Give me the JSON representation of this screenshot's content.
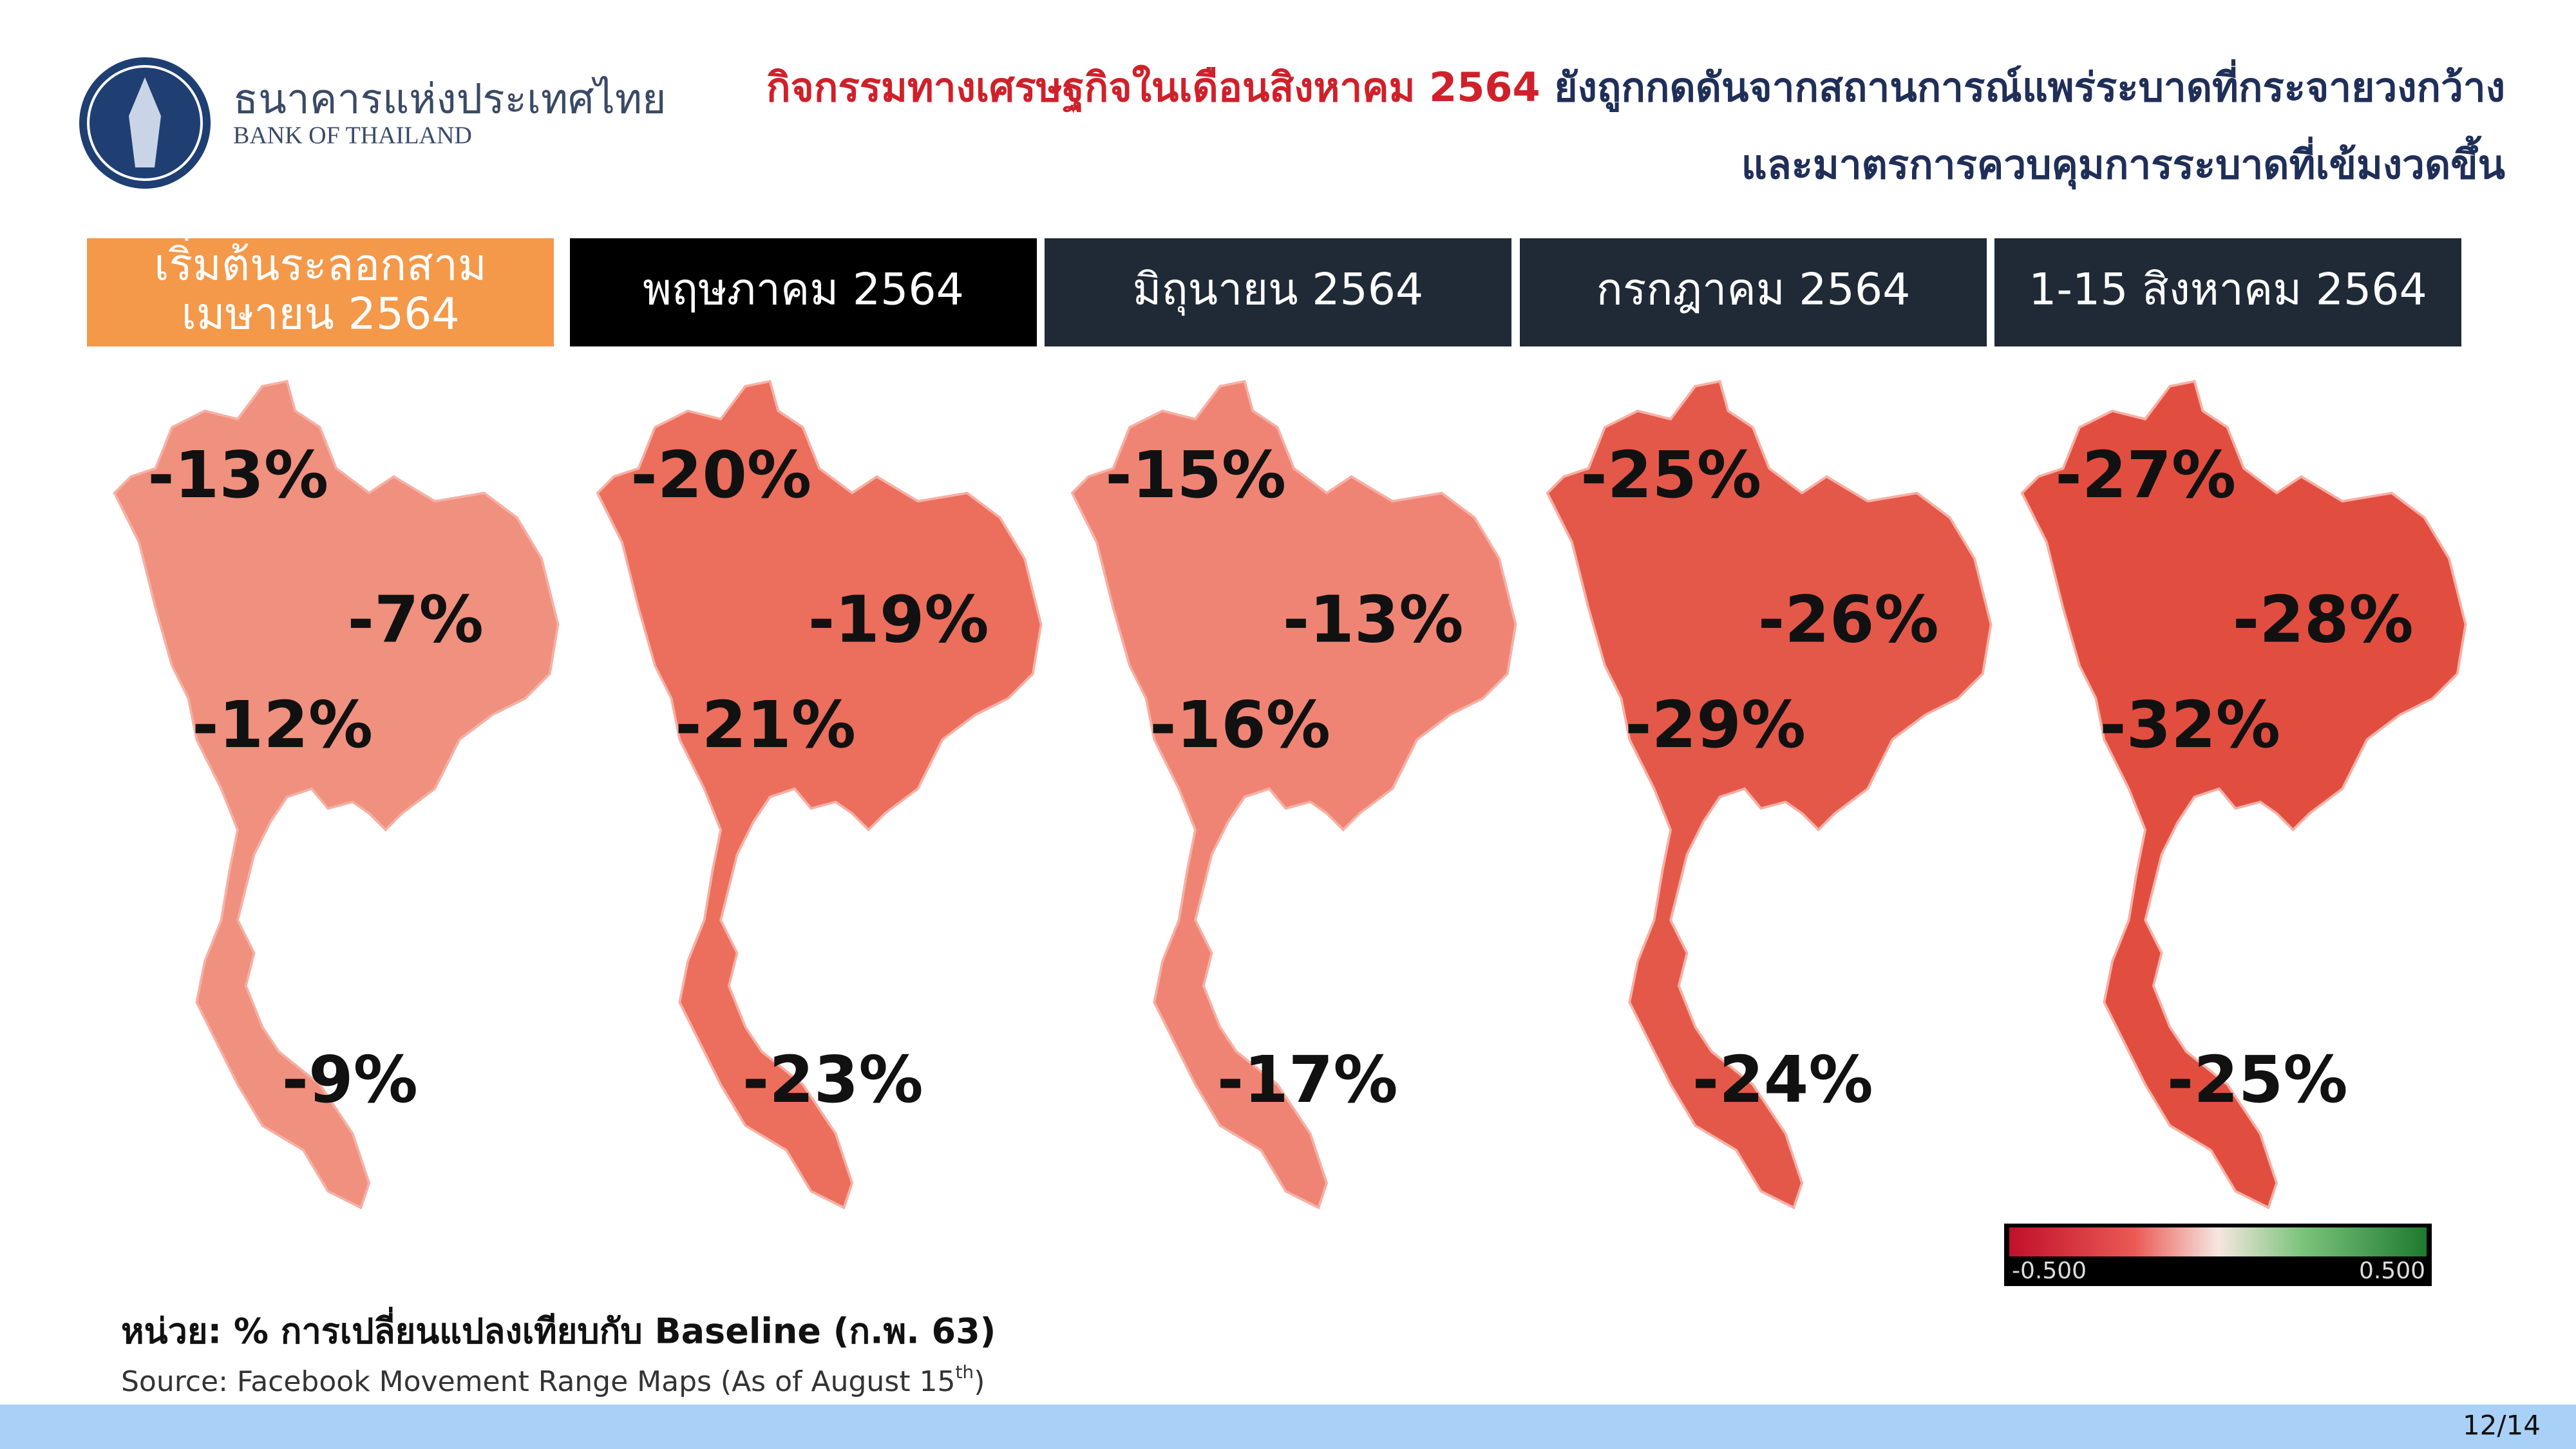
{
  "header": {
    "logo": {
      "name_th": "ธนาคารแห่งประเทศไทย",
      "name_en": "BANK OF THAILAND"
    },
    "title": {
      "highlight": "กิจกรรมทางเศรษฐกิจในเดือนสิงหาคม 2564",
      "rest": " ยังถูกกดดันจากสถานการณ์แพร่ระบาดที่กระจายวงกว้าง",
      "line2": "และมาตรการควบคุมการระบาดที่เข้มงวดขึ้น"
    }
  },
  "panels": [
    {
      "label_lines": [
        "เริ่มต้นระลอกสาม",
        "เมษายน 2564"
      ],
      "north": "-13%",
      "northeast": "-7%",
      "central": "-12%",
      "south": "-9%"
    },
    {
      "label_lines": [
        "พฤษภาคม 2564"
      ],
      "north": "-20%",
      "northeast": "-19%",
      "central": "-21%",
      "south": "-23%"
    },
    {
      "label_lines": [
        "มิถุนายน 2564"
      ],
      "north": "-15%",
      "northeast": "-13%",
      "central": "-16%",
      "south": "-17%"
    },
    {
      "label_lines": [
        "กรกฎาคม 2564"
      ],
      "north": "-25%",
      "northeast": "-26%",
      "central": "-29%",
      "south": "-24%"
    },
    {
      "label_lines": [
        "1-15 สิงหาคม 2564"
      ],
      "north": "-27%",
      "northeast": "-28%",
      "central": "-32%",
      "south": "-25%"
    }
  ],
  "legend": {
    "min": "-0.500",
    "max": "0.500"
  },
  "footer": {
    "unit": "หน่วย: % การเปลี่ยนแปลงเทียบกับ Baseline (ก.พ. 63)",
    "source": "Source: Facebook Movement Range Maps (As of August 15",
    "source_sup": "th",
    "source_end": ")",
    "page": "12/14"
  }
}
